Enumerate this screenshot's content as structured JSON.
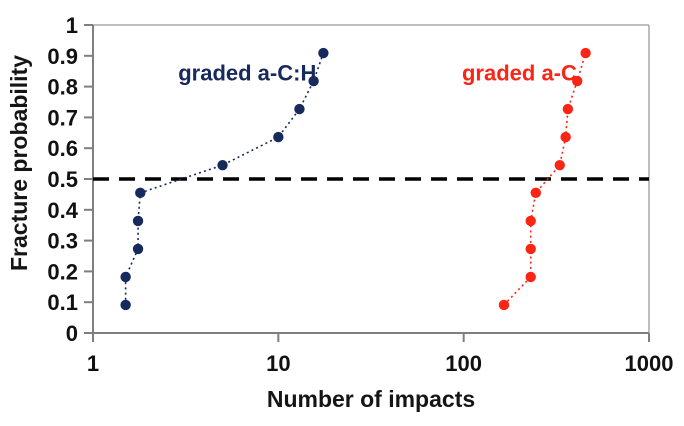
{
  "chart_data": {
    "type": "line",
    "title": "",
    "xlabel": "Number of impacts",
    "ylabel": "Fracture probability",
    "x_scale": "log",
    "x_range": [
      1,
      1000
    ],
    "y_range": [
      0,
      1
    ],
    "grid": "off",
    "legend": "inline-annotations",
    "x_ticks": [
      {
        "value": 1,
        "label": "1"
      },
      {
        "value": 10,
        "label": "10"
      },
      {
        "value": 100,
        "label": "100"
      },
      {
        "value": 1000,
        "label": "1000"
      }
    ],
    "y_ticks": [
      {
        "value": 0,
        "label": "0"
      },
      {
        "value": 0.1,
        "label": "0.1"
      },
      {
        "value": 0.2,
        "label": "0.2"
      },
      {
        "value": 0.3,
        "label": "0.3"
      },
      {
        "value": 0.4,
        "label": "0.4"
      },
      {
        "value": 0.5,
        "label": "0.5"
      },
      {
        "value": 0.6,
        "label": "0.6"
      },
      {
        "value": 0.7,
        "label": "0.7"
      },
      {
        "value": 0.8,
        "label": "0.8"
      },
      {
        "value": 0.9,
        "label": "0.9"
      },
      {
        "value": 1,
        "label": "1"
      }
    ],
    "reference_line": {
      "y": 0.5,
      "style": "dashed",
      "color": "#000000",
      "width": 3.5
    },
    "series": [
      {
        "name": "graded a-C:H",
        "color": "#172A5C",
        "marker": "circle",
        "marker_radius": 5.2,
        "line_style": "dotted",
        "label": {
          "text": "graded a-C:H",
          "x": 6.8,
          "y": 0.845
        },
        "x": [
          1.5,
          1.5,
          1.75,
          1.75,
          1.8,
          5,
          10,
          13,
          15.5,
          17.5
        ],
        "y": [
          0.091,
          0.182,
          0.273,
          0.364,
          0.455,
          0.545,
          0.636,
          0.727,
          0.818,
          0.909
        ]
      },
      {
        "name": "graded a-C",
        "color": "#FB2516",
        "marker": "circle",
        "marker_radius": 5.2,
        "line_style": "dotted",
        "label": {
          "text": "graded a-C",
          "x": 200,
          "y": 0.845
        },
        "x": [
          165,
          230,
          230,
          230,
          245,
          330,
          355,
          365,
          410,
          455
        ],
        "y": [
          0.091,
          0.182,
          0.273,
          0.364,
          0.455,
          0.545,
          0.636,
          0.727,
          0.818,
          0.909
        ]
      }
    ],
    "plot_style": {
      "background": "#FFFFFF",
      "axis_color": "#7F7F7F",
      "border_color": "#A9A9A9",
      "tick_label_color": "#111111"
    }
  }
}
